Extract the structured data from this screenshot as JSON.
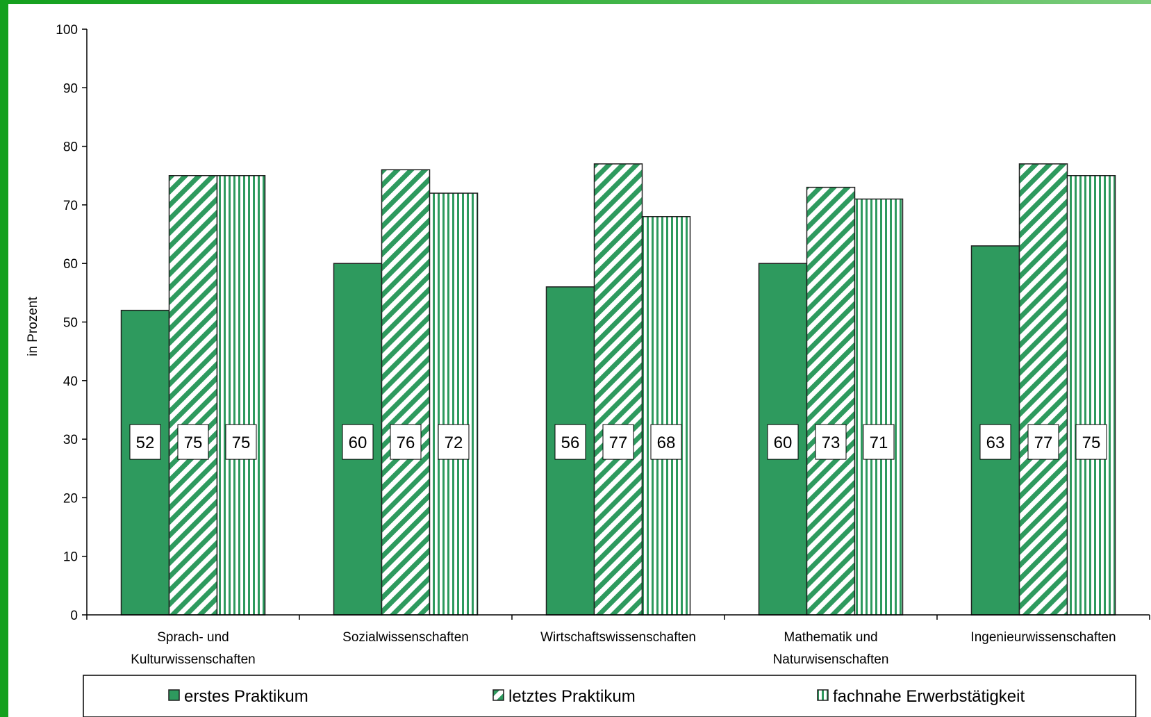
{
  "colors": {
    "accent": "#14a01e",
    "bar_green": "#2e9a5e",
    "bar_edge": "#1f1f1f"
  },
  "chart_data": {
    "type": "bar",
    "ylabel": "in Prozent",
    "ylim": [
      0,
      100
    ],
    "yticks": [
      0,
      10,
      20,
      30,
      40,
      50,
      60,
      70,
      80,
      90,
      100
    ],
    "grid": false,
    "legend_position": "bottom",
    "categories": [
      [
        "Sprach- und",
        "Kulturwissenschaften"
      ],
      [
        "Sozialwissenschaften"
      ],
      [
        "Wirtschaftswissenschaften"
      ],
      [
        "Mathematik und",
        "Naturwisenschaften"
      ],
      [
        "Ingenieurwissenschaften"
      ]
    ],
    "series": [
      {
        "name": "erstes Praktikum",
        "pattern": "solid",
        "values": [
          52,
          60,
          56,
          60,
          63
        ],
        "labels": [
          "52",
          "60",
          "56",
          "60",
          "63"
        ]
      },
      {
        "name": "letztes Praktikum",
        "pattern": "diagonal",
        "values": [
          75,
          76,
          77,
          73,
          77
        ],
        "labels": [
          "75",
          "76",
          "77",
          "73",
          "77"
        ]
      },
      {
        "name": "fachnahe Erwerbstätigkeit",
        "pattern": "vertical",
        "values": [
          75,
          72,
          68,
          71,
          75
        ],
        "labels": [
          "75",
          "72",
          "68",
          "71",
          "75"
        ]
      }
    ]
  }
}
